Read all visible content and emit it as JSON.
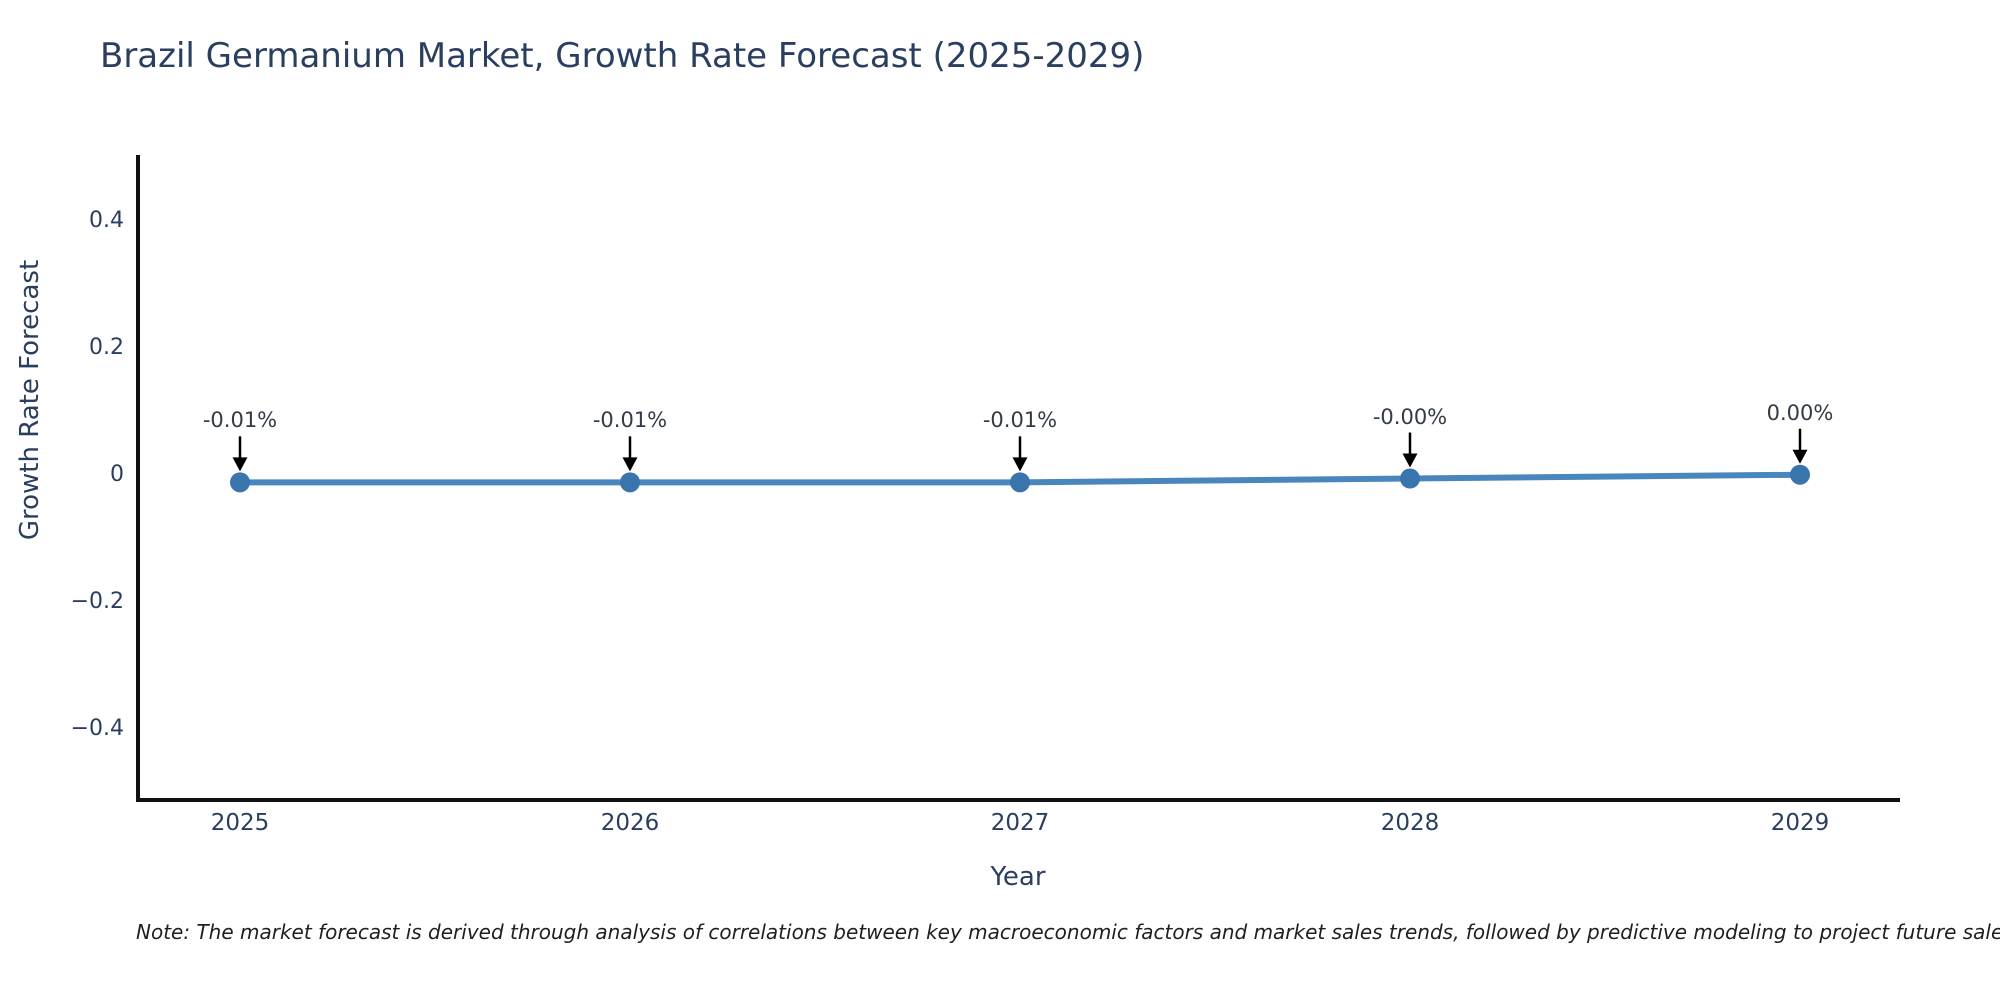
{
  "title": "Brazil Germanium Market, Growth Rate Forecast (2025-2029)",
  "note": "Note: The market forecast is derived through analysis of correlations between key macroeconomic factors and market sales trends, followed by predictive modeling to project future sales performance.",
  "chart_data": {
    "type": "line",
    "title": "Brazil Germanium Market, Growth Rate Forecast (2025-2029)",
    "xlabel": "Year",
    "ylabel": "Growth Rate Forecast",
    "x": [
      2025,
      2026,
      2027,
      2028,
      2029
    ],
    "y": [
      -0.01,
      -0.01,
      -0.01,
      -0.004,
      0.002
    ],
    "point_labels": [
      "-0.01%",
      "-0.01%",
      "-0.01%",
      "-0.00%",
      "0.00%"
    ],
    "x_ticks": [
      "2025",
      "2026",
      "2027",
      "2028",
      "2029"
    ],
    "y_ticks": [
      "0.4",
      "0.2",
      "0",
      "−0.2",
      "−0.4"
    ],
    "y_tick_values": [
      0.4,
      0.2,
      0,
      -0.2,
      -0.4
    ],
    "ylim": [
      -0.51,
      0.51
    ],
    "grid": false,
    "legend": "none",
    "annotation_arrows": true,
    "colors": {
      "line": "#4a86be",
      "marker": "#3a74ad",
      "axis_line": "#111111",
      "axis_text": "#2a3f5f",
      "annotation_text": "#333b46",
      "arrow": "#000000",
      "background": "#ffffff"
    }
  }
}
